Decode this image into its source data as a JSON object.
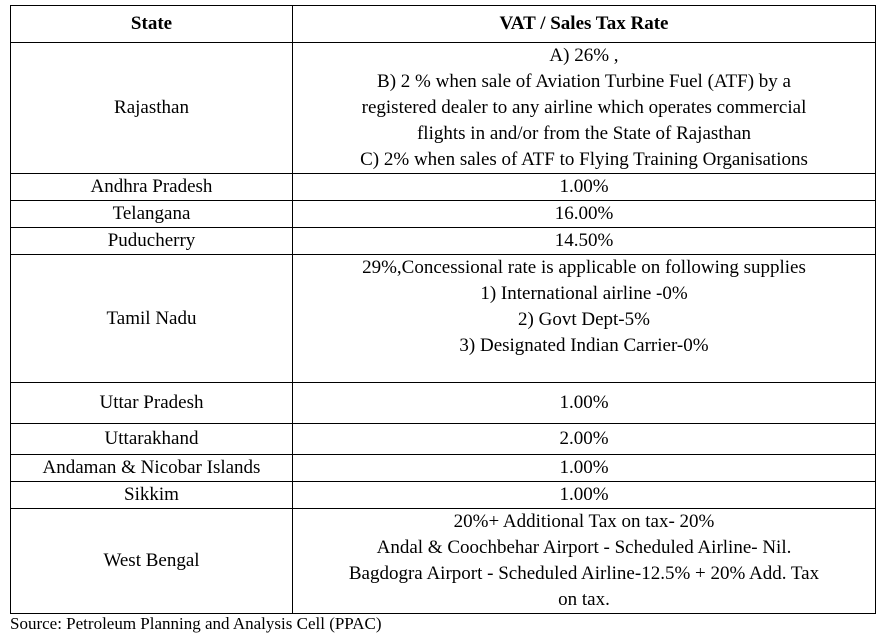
{
  "table": {
    "headers": {
      "state": "State",
      "rate": "VAT / Sales Tax Rate"
    },
    "rows": [
      {
        "state": "Rajasthan",
        "rate_lines": [
          "A) 26% ,",
          "B)  2 % when sale of Aviation Turbine Fuel (ATF) by a",
          "registered dealer to any airline which operates commercial",
          "flights in and/or from the State of Rajasthan",
          "C) 2% when sales of ATF to Flying Training Organisations"
        ]
      },
      {
        "state": "Andhra Pradesh",
        "rate_lines": [
          "1.00%"
        ]
      },
      {
        "state": "Telangana",
        "rate_lines": [
          "16.00%"
        ]
      },
      {
        "state": "Puducherry",
        "rate_lines": [
          "14.50%"
        ]
      },
      {
        "state": "Tamil Nadu",
        "rate_lines": [
          "29%,Concessional rate is applicable on following supplies",
          "1) International airline -0%",
          "2) Govt Dept-5%",
          "3) Designated Indian Carrier-0%"
        ]
      },
      {
        "state": "Uttar Pradesh",
        "rate_lines": [
          "1.00%"
        ]
      },
      {
        "state": "Uttarakhand",
        "rate_lines": [
          "2.00%"
        ]
      },
      {
        "state": "Andaman & Nicobar Islands",
        "rate_lines": [
          "1.00%"
        ]
      },
      {
        "state": "Sikkim",
        "rate_lines": [
          "1.00%"
        ]
      },
      {
        "state": "West Bengal",
        "rate_lines": [
          "20%+ Additional Tax on tax- 20%",
          "Andal & Coochbehar Airport - Scheduled Airline- Nil.",
          "Bagdogra Airport - Scheduled Airline-12.5% + 20% Add. Tax",
          "on tax."
        ]
      }
    ]
  },
  "source_note": "Source: Petroleum Planning and Analysis Cell (PPAC)"
}
